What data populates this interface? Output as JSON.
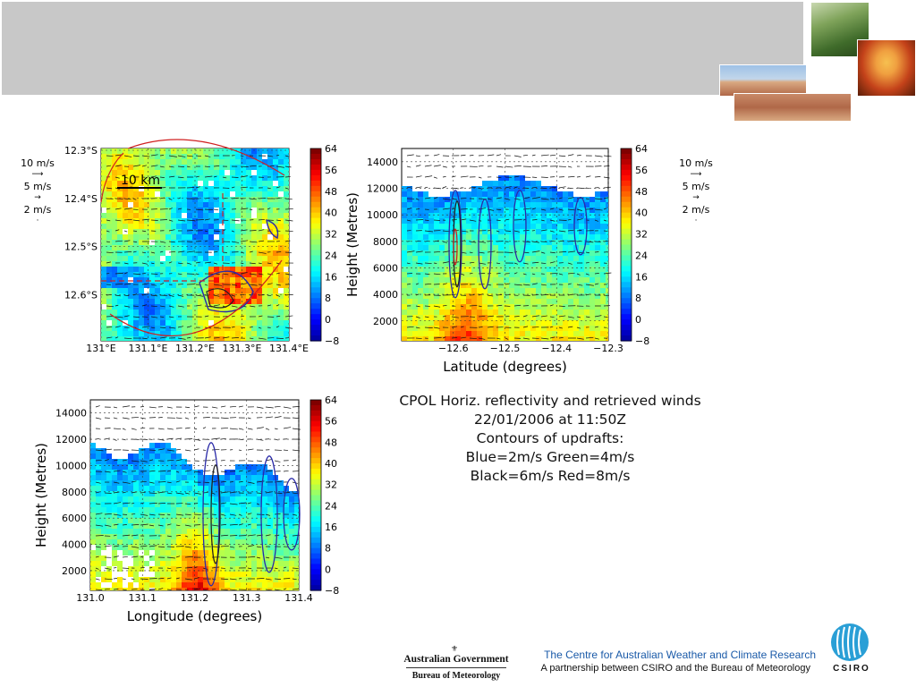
{
  "header": {
    "banner_color": "#c8c8c8"
  },
  "photos": [
    {
      "name": "forest-photo",
      "colors": [
        "#3f6b2a",
        "#7fa35a",
        "#c9d8b0"
      ]
    },
    {
      "name": "fire-photo",
      "colors": [
        "#f0a040",
        "#c4421a",
        "#5a1e08"
      ]
    },
    {
      "name": "wheat-field-photo",
      "colors": [
        "#9ec1e6",
        "#d9a982",
        "#b06848"
      ]
    }
  ],
  "wind_legend": {
    "labels": [
      "10 m/s",
      "5 m/s",
      "2 m/s"
    ]
  },
  "colorbar": {
    "ticks": [
      "64",
      "56",
      "48",
      "40",
      "32",
      "24",
      "16",
      "8",
      "0",
      "−8"
    ],
    "min": -8,
    "max": 64,
    "colors": [
      "#00008f",
      "#0000ff",
      "#0080ff",
      "#00ffff",
      "#80ff80",
      "#ffff00",
      "#ff8000",
      "#ff0000",
      "#800000"
    ]
  },
  "caption": {
    "lines": [
      "CPOL Horiz. reflectivity and retrieved winds",
      "22/01/2006 at 11:50Z",
      "Contours of updrafts:",
      "Blue=2m/s  Green=4m/s",
      "Black=6m/s Red=8m/s"
    ]
  },
  "footer": {
    "centre_name": "The Centre for Australian Weather and Climate Research",
    "partnership": "A partnership between CSIRO and the Bureau of Meteorology",
    "gov_line1": "Australian Government",
    "gov_line2": "Bureau of Meteorology",
    "csiro_word": "CSIRO",
    "accent_color": "#1a5aa8"
  },
  "chart_data": [
    {
      "type": "heatmap",
      "title": "",
      "xlabel": "",
      "ylabel": "",
      "x_ticks": [
        "131°E",
        "131.1°E",
        "131.2°E",
        "131.3°E",
        "131.4°E"
      ],
      "y_ticks": [
        "12.3°S",
        "12.4°S",
        "12.5°S",
        "12.6°S"
      ],
      "xlim": [
        131.0,
        131.4
      ],
      "ylim": [
        -12.7,
        -12.3
      ],
      "annotation": "10 km",
      "grid": true
    },
    {
      "type": "heatmap",
      "title": "",
      "xlabel": "Latitude (degrees)",
      "ylabel": "Height (Metres)",
      "x_ticks": [
        "−12.6",
        "−12.5",
        "−12.4",
        "−12.3"
      ],
      "y_ticks": [
        "14000",
        "12000",
        "10000",
        "8000",
        "6000",
        "4000",
        "2000"
      ],
      "xlim": [
        -12.7,
        -12.3
      ],
      "ylim": [
        500,
        15000
      ],
      "grid": true
    },
    {
      "type": "heatmap",
      "title": "",
      "xlabel": "Longitude (degrees)",
      "ylabel": "Height (Metres)",
      "x_ticks": [
        "131.0",
        "131.1",
        "131.2",
        "131.3",
        "131.4"
      ],
      "y_ticks": [
        "14000",
        "12000",
        "10000",
        "8000",
        "6000",
        "4000",
        "2000"
      ],
      "xlim": [
        131.0,
        131.4
      ],
      "ylim": [
        500,
        15000
      ],
      "grid": true
    }
  ]
}
